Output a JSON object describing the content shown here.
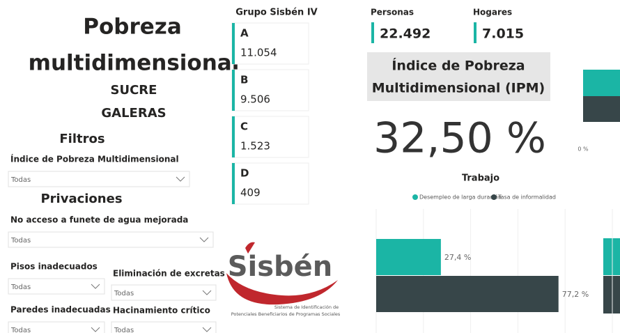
{
  "left": {
    "title_line1": "Pobreza",
    "title_line2": "multidimensional",
    "department": "SUCRE",
    "municipality": "GALERAS",
    "filters_heading": "Filtros",
    "privations_heading": "Privaciones",
    "filters": [
      {
        "label": "Índice de Pobreza Multidimensional",
        "value": "Todas"
      },
      {
        "label": "No acceso a funete de agua mejorada",
        "value": "Todas"
      },
      {
        "label": "Pisos inadecuados",
        "value": "Todas"
      },
      {
        "label": "Eliminación de excretas",
        "value": "Todas"
      },
      {
        "label": "Paredes inadecuadas",
        "value": "Todas"
      },
      {
        "label": "Hacinamiento crítico",
        "value": "Todas"
      }
    ]
  },
  "groups": {
    "title": "Grupo Sisbén IV",
    "cards": [
      {
        "letter": "A",
        "value": "11.054"
      },
      {
        "letter": "B",
        "value": "9.506"
      },
      {
        "letter": "C",
        "value": "1.523"
      },
      {
        "letter": "D",
        "value": "409"
      }
    ]
  },
  "logo": {
    "name": "Sisbén",
    "line1": "Sistema de Identificación de",
    "line2": "Potenciales Beneficiarios de Programas Sociales"
  },
  "kpis": [
    {
      "label": "Personas",
      "value": "22.492"
    },
    {
      "label": "Hogares",
      "value": "7.015"
    }
  ],
  "ipm": {
    "title_line1": "Índice de Pobreza",
    "title_line2": "Multidimensional (IPM)",
    "value": "32,50 %"
  },
  "side_chart": {
    "label": "0 %"
  },
  "trabajo": {
    "type": "bar",
    "title": "Trabajo",
    "orientation": "horizontal",
    "xlim": [
      0,
      100
    ],
    "xticks": [
      0,
      20,
      40,
      60,
      80,
      100
    ],
    "grid": true,
    "series": [
      {
        "name": "Desempleo de larga duración",
        "color": "#1bb5a5",
        "values": [
          27.4
        ],
        "value_labels": [
          "27,4 %"
        ]
      },
      {
        "name": "Tasa de informalidad",
        "color": "#374649",
        "values": [
          77.2
        ],
        "value_labels": [
          "77,2 %"
        ]
      }
    ]
  }
}
